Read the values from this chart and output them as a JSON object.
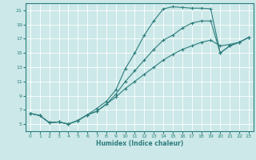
{
  "xlabel": "Humidex (Indice chaleur)",
  "bg_color": "#cce8e8",
  "grid_color": "#ffffff",
  "line_color": "#2e7d7d",
  "xlim": [
    -0.5,
    23.5
  ],
  "ylim": [
    4.0,
    22.0
  ],
  "yticks": [
    5,
    7,
    9,
    11,
    13,
    15,
    17,
    19,
    21
  ],
  "xticks": [
    0,
    1,
    2,
    3,
    4,
    5,
    6,
    7,
    8,
    9,
    10,
    11,
    12,
    13,
    14,
    15,
    16,
    17,
    18,
    19,
    20,
    21,
    22,
    23
  ],
  "line1_x": [
    0,
    1,
    2,
    3,
    4,
    5,
    6,
    7,
    8,
    9,
    10,
    11,
    12,
    13,
    14,
    15,
    16,
    17,
    18,
    19,
    20,
    21,
    22,
    23
  ],
  "line1_y": [
    6.5,
    6.2,
    5.2,
    5.3,
    5.0,
    5.5,
    6.3,
    6.8,
    7.8,
    8.8,
    10.0,
    11.0,
    12.0,
    13.0,
    14.0,
    14.8,
    15.5,
    16.0,
    16.5,
    16.8,
    16.0,
    16.2,
    16.5,
    17.2
  ],
  "line2_x": [
    0,
    1,
    2,
    3,
    4,
    5,
    6,
    7,
    8,
    9,
    10,
    11,
    12,
    13,
    14,
    15,
    16,
    17,
    18,
    19,
    20,
    21,
    22,
    23
  ],
  "line2_y": [
    6.5,
    6.2,
    5.2,
    5.3,
    5.0,
    5.5,
    6.3,
    7.2,
    8.2,
    9.8,
    12.8,
    15.0,
    17.5,
    19.5,
    21.2,
    21.5,
    21.4,
    21.3,
    21.3,
    21.2,
    15.0,
    16.0,
    16.5,
    17.2
  ],
  "line3_x": [
    0,
    1,
    2,
    3,
    4,
    5,
    6,
    7,
    8,
    9,
    10,
    11,
    12,
    13,
    14,
    15,
    16,
    17,
    18,
    19,
    20,
    21,
    22,
    23
  ],
  "line3_y": [
    6.5,
    6.2,
    5.2,
    5.3,
    5.0,
    5.5,
    6.3,
    6.8,
    7.8,
    9.2,
    11.0,
    12.5,
    14.0,
    15.5,
    16.8,
    17.5,
    18.5,
    19.2,
    19.5,
    19.5,
    15.0,
    16.0,
    16.5,
    17.2
  ]
}
